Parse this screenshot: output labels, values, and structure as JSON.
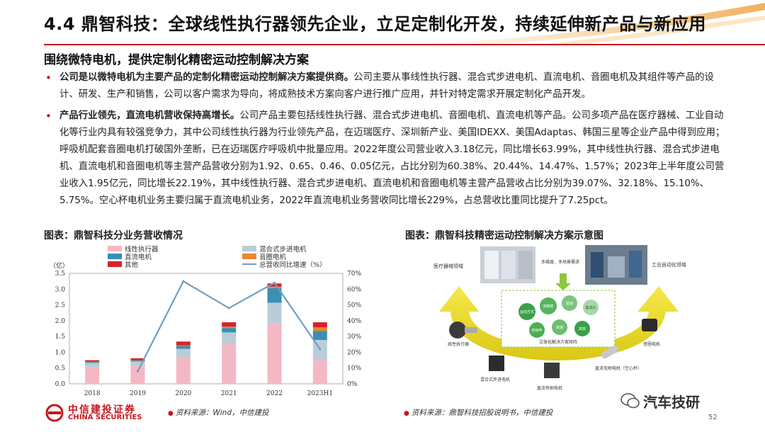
{
  "header": {
    "title": "4.4 鼎智科技：全球线性执行器领先企业，立足定制化开发，持续延伸新产品与新应用",
    "accent_color": "#c8161d"
  },
  "subtitle": "围绕微特电机，提供定制化精密运动控制解决方案",
  "bullets": [
    {
      "bold": "公司是以微特电机为主要产品的定制化精密运动控制解决方案提供商。",
      "text": "公司主要从事线性执行器、混合式步进电机、直流电机、音圈电机及其组件等产品的设计、研发、生产和销售，公司以客户需求为导向，将成熟技术方案向客户进行推广应用，并针对特定需求开展定制化产品开发。"
    },
    {
      "bold": "产品行业领先，直流电机营收保持高增长。",
      "text": "公司产品主要包括线性执行器、混合式步进电机、音圈电机、直流电机等产品。公司多项产品在医疗器械、工业自动化等行业内具有较强竞争力，其中公司线性执行器为行业领先产品，在迈瑞医疗、深圳新产业、美国IDEXX、美国Adaptas、韩国三星等企业产品中得到应用；呼吸机配套音圈电机打破国外垄断，已在迈瑞医疗呼吸机中批量应用。2022年度公司营业收入3.18亿元，同比增长63.99%，其中线性执行器、混合式步进电机、直流电机和音圈电机等主营产品营收分别为1.92、0.65、0.46、0.05亿元，占比分别为60.38%、20.44%、14.47%、1.57%；2023年上半年度公司营业收入1.95亿元，同比增长22.19%，其中线性执行器、混合式步进电机、直流电机和音圈电机等主营产品营收占比分别为39.07%、32.18%、15.10%、5.75%。空心杯电机业务主要归属于直流电机业务，2022年直流电机业务营收同比增长229%，占总营收比重同比提升了7.25pct。"
    }
  ],
  "left_figure": {
    "title": "图表：鼎智科技分业务营收情况",
    "source": "资料来源：Wind，中信建投"
  },
  "right_figure": {
    "title": "图表：鼎智科技精密运动控制解决方案示意图",
    "source": "资料来源：鼎智科技招股说明书，中信建投",
    "labels": {
      "medical": "医疗器械领域",
      "industrial": "工业自动化领域",
      "multi": "多维度、多场景需求",
      "center": "立体化解决方案矩阵",
      "linear": "线性执行器",
      "hybrid": "混合式步进电机",
      "dc_brushed": "直流有刷电机",
      "dc_brushless": "直流无刷电机（空心杯）",
      "voice": "音圈电机",
      "bubbles": [
        "运动方式",
        "高精度",
        "驱动",
        "集成化",
        "低噪声",
        "高速",
        "高效"
      ]
    }
  },
  "chart_data": {
    "type": "bar",
    "stacked": true,
    "categories": [
      "2018",
      "2019",
      "2020",
      "2021",
      "2022",
      "2023H1"
    ],
    "y_unit_label": "（亿）",
    "ylim": [
      0,
      3.5
    ],
    "y_ticks": [
      "0.0",
      "0.5",
      "1.0",
      "1.5",
      "2.0",
      "2.5",
      "3.0",
      "3.5"
    ],
    "y2lim": [
      0,
      70
    ],
    "y2_ticks": [
      "0%",
      "10%",
      "20%",
      "30%",
      "40%",
      "50%",
      "60%",
      "70%"
    ],
    "series": [
      {
        "name": "线性执行器",
        "color": "#f4b8c5",
        "values": [
          0.52,
          0.58,
          0.83,
          1.26,
          1.92,
          0.76
        ]
      },
      {
        "name": "混合式步进电机",
        "color": "#b9cdd8",
        "values": [
          0.14,
          0.13,
          0.28,
          0.37,
          0.65,
          0.63
        ]
      },
      {
        "name": "直流电机",
        "color": "#3a8fb3",
        "values": [
          0.03,
          0.03,
          0.09,
          0.14,
          0.46,
          0.29
        ]
      },
      {
        "name": "音圈电机",
        "color": "#e8882e",
        "values": [
          0.01,
          0.01,
          0.02,
          0.04,
          0.05,
          0.11
        ]
      },
      {
        "name": "其他",
        "color": "#d7222a",
        "values": [
          0.05,
          0.06,
          0.12,
          0.14,
          0.1,
          0.16
        ]
      }
    ],
    "line": {
      "name": "总营收同比增速（%）",
      "color": "#6f9ec4",
      "axis": "right",
      "values": [
        null,
        8,
        65,
        48,
        64,
        22
      ]
    },
    "legend": "top"
  }
}
